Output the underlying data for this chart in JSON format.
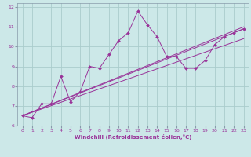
{
  "xlabel": "Windchill (Refroidissement éolien,°C)",
  "bg_color": "#cce8e8",
  "grid_color": "#aacccc",
  "line_color": "#993399",
  "spine_color": "#8899aa",
  "xlim": [
    -0.5,
    23.5
  ],
  "ylim": [
    6,
    12.2
  ],
  "xticks": [
    0,
    1,
    2,
    3,
    4,
    5,
    6,
    7,
    8,
    9,
    10,
    11,
    12,
    13,
    14,
    15,
    16,
    17,
    18,
    19,
    20,
    21,
    22,
    23
  ],
  "yticks": [
    6,
    7,
    8,
    9,
    10,
    11,
    12
  ],
  "line1_x": [
    0,
    1,
    2,
    3,
    4,
    5,
    6,
    7,
    8,
    9,
    10,
    11,
    12,
    13,
    14,
    15,
    16,
    17,
    18,
    19,
    20,
    21,
    22,
    23
  ],
  "line1_y": [
    6.5,
    6.4,
    7.1,
    7.1,
    8.5,
    7.2,
    7.7,
    9.0,
    8.9,
    9.6,
    10.3,
    10.7,
    11.8,
    11.1,
    10.5,
    9.5,
    9.5,
    8.9,
    8.9,
    9.3,
    10.1,
    10.5,
    10.7,
    10.9
  ],
  "line2_x": [
    0,
    23
  ],
  "line2_y": [
    6.5,
    10.4
  ],
  "line3_x": [
    0,
    23
  ],
  "line3_y": [
    6.5,
    10.9
  ],
  "line4_x": [
    0,
    23
  ],
  "line4_y": [
    6.5,
    11.0
  ]
}
